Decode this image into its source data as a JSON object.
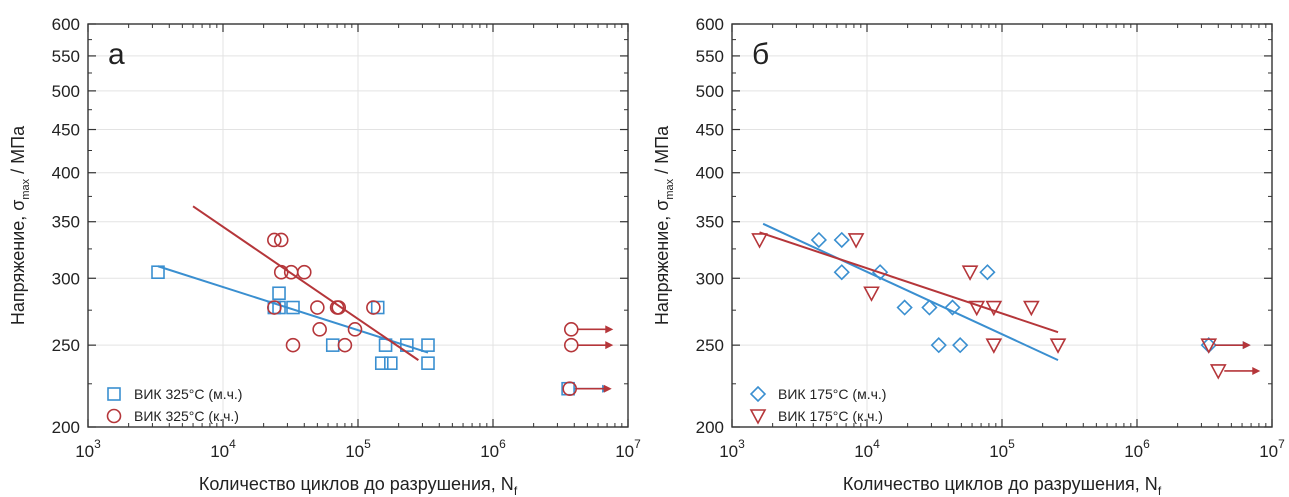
{
  "chart_data": [
    {
      "type": "scatter",
      "panel_label": "а",
      "ylabel": "Напряжение, σ",
      "ylabel_sub": "max",
      "ylabel_unit": " / МПа",
      "xlabel": "Количество циклов до разрушения,  N",
      "xlabel_sub": "f",
      "x_scale": "log",
      "y_scale": "log",
      "xlim": [
        1000,
        10000000
      ],
      "ylim": [
        200,
        600
      ],
      "x_ticks": [
        {
          "value": 1000,
          "base": "10",
          "exp": "3"
        },
        {
          "value": 10000,
          "base": "10",
          "exp": "4"
        },
        {
          "value": 100000,
          "base": "10",
          "exp": "5"
        },
        {
          "value": 1000000,
          "base": "10",
          "exp": "6"
        },
        {
          "value": 10000000,
          "base": "10",
          "exp": "7"
        }
      ],
      "y_ticks": [
        {
          "value": 200,
          "label": "200"
        },
        {
          "value": 250,
          "label": "250"
        },
        {
          "value": 300,
          "label": "300"
        },
        {
          "value": 350,
          "label": "350"
        },
        {
          "value": 400,
          "label": "400"
        },
        {
          "value": 450,
          "label": "450"
        },
        {
          "value": 500,
          "label": "500"
        },
        {
          "value": 550,
          "label": "550"
        },
        {
          "value": 600,
          "label": "600"
        }
      ],
      "grid": true,
      "legend_position": "bottom-left",
      "series": [
        {
          "name": "ВИК 325°С (м.ч.)",
          "marker": "square",
          "color": "#3a8fd0",
          "points": [
            {
              "x": 3300,
              "y": 305
            },
            {
              "x": 24000,
              "y": 277
            },
            {
              "x": 26000,
              "y": 288
            },
            {
              "x": 26000,
              "y": 277
            },
            {
              "x": 33000,
              "y": 277
            },
            {
              "x": 65000,
              "y": 250
            },
            {
              "x": 140000,
              "y": 277
            },
            {
              "x": 150000,
              "y": 238
            },
            {
              "x": 160000,
              "y": 250
            },
            {
              "x": 175000,
              "y": 238
            },
            {
              "x": 230000,
              "y": 250
            },
            {
              "x": 330000,
              "y": 250
            },
            {
              "x": 330000,
              "y": 238
            }
          ],
          "runouts": [
            {
              "x": 3600000,
              "y": 222
            }
          ],
          "fit_line": {
            "x": [
              3300,
              330000
            ],
            "y": [
              310,
              245
            ]
          }
        },
        {
          "name": "ВИК 325°С (к.ч.)",
          "marker": "circle",
          "color": "#b5363a",
          "points": [
            {
              "x": 24000,
              "y": 333
            },
            {
              "x": 27000,
              "y": 333
            },
            {
              "x": 27000,
              "y": 305
            },
            {
              "x": 32000,
              "y": 305
            },
            {
              "x": 40000,
              "y": 305
            },
            {
              "x": 24000,
              "y": 277
            },
            {
              "x": 50000,
              "y": 277
            },
            {
              "x": 70000,
              "y": 277
            },
            {
              "x": 72000,
              "y": 277
            },
            {
              "x": 130000,
              "y": 277
            },
            {
              "x": 52000,
              "y": 261
            },
            {
              "x": 95000,
              "y": 261
            },
            {
              "x": 33000,
              "y": 250
            },
            {
              "x": 80000,
              "y": 250
            }
          ],
          "runouts": [
            {
              "x": 3800000,
              "y": 261
            },
            {
              "x": 3800000,
              "y": 250
            },
            {
              "x": 3700000,
              "y": 222
            }
          ],
          "fit_line": {
            "x": [
              6000,
              280000
            ],
            "y": [
              365,
              240
            ]
          }
        }
      ]
    },
    {
      "type": "scatter",
      "panel_label": "б",
      "ylabel": "Напряжение, σ",
      "ylabel_sub": "max",
      "ylabel_unit": " / МПа",
      "xlabel": "Количество циклов до разрушения,  N",
      "xlabel_sub": "f",
      "x_scale": "log",
      "y_scale": "log",
      "xlim": [
        1000,
        10000000
      ],
      "ylim": [
        200,
        600
      ],
      "x_ticks": [
        {
          "value": 1000,
          "base": "10",
          "exp": "3"
        },
        {
          "value": 10000,
          "base": "10",
          "exp": "4"
        },
        {
          "value": 100000,
          "base": "10",
          "exp": "5"
        },
        {
          "value": 1000000,
          "base": "10",
          "exp": "6"
        },
        {
          "value": 10000000,
          "base": "10",
          "exp": "7"
        }
      ],
      "y_ticks": [
        {
          "value": 200,
          "label": "200"
        },
        {
          "value": 250,
          "label": "250"
        },
        {
          "value": 300,
          "label": "300"
        },
        {
          "value": 350,
          "label": "350"
        },
        {
          "value": 400,
          "label": "400"
        },
        {
          "value": 450,
          "label": "450"
        },
        {
          "value": 500,
          "label": "500"
        },
        {
          "value": 550,
          "label": "550"
        },
        {
          "value": 600,
          "label": "600"
        }
      ],
      "grid": true,
      "legend_position": "bottom-left",
      "series": [
        {
          "name": "ВИК 175°С (м.ч.)",
          "marker": "diamond",
          "color": "#3a8fd0",
          "points": [
            {
              "x": 4400,
              "y": 333
            },
            {
              "x": 6500,
              "y": 333
            },
            {
              "x": 6500,
              "y": 305
            },
            {
              "x": 12500,
              "y": 305
            },
            {
              "x": 19000,
              "y": 277
            },
            {
              "x": 29000,
              "y": 277
            },
            {
              "x": 43000,
              "y": 277
            },
            {
              "x": 78000,
              "y": 305
            },
            {
              "x": 34000,
              "y": 250
            },
            {
              "x": 49000,
              "y": 250
            }
          ],
          "runouts": [
            {
              "x": 3400000,
              "y": 250
            }
          ],
          "fit_line": {
            "x": [
              1700,
              260000
            ],
            "y": [
              348,
              240
            ]
          }
        },
        {
          "name": "ВИК 175°С (к.ч.)",
          "marker": "triangle-down",
          "color": "#b5363a",
          "points": [
            {
              "x": 1600,
              "y": 333
            },
            {
              "x": 8300,
              "y": 333
            },
            {
              "x": 10800,
              "y": 288
            },
            {
              "x": 58000,
              "y": 305
            },
            {
              "x": 65000,
              "y": 277
            },
            {
              "x": 87000,
              "y": 277
            },
            {
              "x": 165000,
              "y": 277
            },
            {
              "x": 87000,
              "y": 250
            },
            {
              "x": 260000,
              "y": 250
            }
          ],
          "runouts": [
            {
              "x": 3400000,
              "y": 250
            },
            {
              "x": 4000000,
              "y": 233
            }
          ],
          "fit_line": {
            "x": [
              1600,
              260000
            ],
            "y": [
              340,
              259
            ]
          }
        }
      ]
    }
  ]
}
